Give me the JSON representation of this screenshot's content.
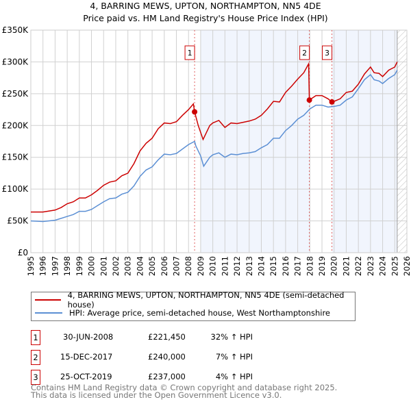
{
  "title": "4, BARRING MEWS, UPTON, NORTHAMPTON, NN5 4DE",
  "subtitle": "Price paid vs. HM Land Registry's House Price Index (HPI)",
  "chart_data": {
    "type": "line",
    "title": "4, BARRING MEWS, UPTON, NORTHAMPTON, NN5 4DE",
    "subtitle": "Price paid vs. HM Land Registry's House Price Index (HPI)",
    "xlim": [
      1995,
      2026
    ],
    "ylim": [
      0,
      350000
    ],
    "x_ticks": [
      "1995",
      "1996",
      "1997",
      "1998",
      "1999",
      "2000",
      "2001",
      "2002",
      "2003",
      "2004",
      "2005",
      "2006",
      "2007",
      "2008",
      "2009",
      "2010",
      "2011",
      "2012",
      "2013",
      "2014",
      "2015",
      "2016",
      "2017",
      "2018",
      "2019",
      "2020",
      "2021",
      "2022",
      "2023",
      "2024",
      "2025",
      "2026"
    ],
    "y_ticks": [
      {
        "v": 0,
        "label": "£0"
      },
      {
        "v": 50000,
        "label": "£50K"
      },
      {
        "v": 100000,
        "label": "£100K"
      },
      {
        "v": 150000,
        "label": "£150K"
      },
      {
        "v": 200000,
        "label": "£200K"
      },
      {
        "v": 250000,
        "label": "£250K"
      },
      {
        "v": 300000,
        "label": "£300K"
      },
      {
        "v": 350000,
        "label": "£350K"
      }
    ],
    "grid": true,
    "shaded_ranges": [
      [
        2009,
        2017.96
      ],
      [
        2019.82,
        2025.2
      ]
    ],
    "hatched_from": 2025.2,
    "series": [
      {
        "name": "4, BARRING MEWS, UPTON, NORTHAMPTON, NN5 4DE (semi-detached house)",
        "color": "#cc0000",
        "x": [
          1995,
          1996,
          1997,
          1997.5,
          1998,
          1998.5,
          1999,
          1999.5,
          2000,
          2000.5,
          2001,
          2001.5,
          2002,
          2002.5,
          2003,
          2003.5,
          2004,
          2004.5,
          2005,
          2005.5,
          2006,
          2006.5,
          2007,
          2007.5,
          2008,
          2008.4,
          2008.5,
          2008.8,
          2009.2,
          2009.75,
          2010,
          2010.5,
          2011,
          2011.5,
          2012,
          2012.5,
          2013,
          2013.5,
          2014,
          2014.5,
          2015,
          2015.5,
          2016,
          2016.5,
          2017,
          2017.5,
          2017.9,
          2017.96,
          2018.5,
          2019,
          2019.5,
          2019.82,
          2020,
          2020.5,
          2021,
          2021.5,
          2022,
          2022.5,
          2023,
          2023.3,
          2023.7,
          2024,
          2024.5,
          2025,
          2025.2
        ],
        "y": [
          64000,
          64000,
          67000,
          71000,
          77000,
          80000,
          86000,
          86000,
          91000,
          98000,
          106000,
          111000,
          113000,
          121000,
          125000,
          140000,
          160000,
          172000,
          180000,
          195000,
          204000,
          203000,
          206000,
          216000,
          225000,
          234000,
          221450,
          200000,
          178000,
          200000,
          204000,
          208000,
          197000,
          204000,
          203000,
          205000,
          207000,
          210000,
          216000,
          226000,
          238000,
          237000,
          252000,
          262000,
          273000,
          283000,
          297000,
          240000,
          247000,
          247000,
          242000,
          237000,
          238000,
          242000,
          252000,
          254000,
          265000,
          281000,
          292000,
          283000,
          282000,
          277000,
          287000,
          292000,
          300000
        ]
      },
      {
        "name": "HPI: Average price, semi-detached house, West Northamptonshire",
        "color": "#5b8fd4",
        "x": [
          1995,
          1996,
          1997,
          1997.5,
          1998,
          1998.5,
          1999,
          1999.5,
          2000,
          2000.5,
          2001,
          2001.5,
          2002,
          2002.5,
          2003,
          2003.5,
          2004,
          2004.5,
          2005,
          2005.5,
          2006,
          2006.5,
          2007,
          2007.5,
          2008,
          2008.5,
          2008.6,
          2009,
          2009.25,
          2009.75,
          2010,
          2010.5,
          2011,
          2011.5,
          2012,
          2012.5,
          2013,
          2013.5,
          2014,
          2014.5,
          2015,
          2015.5,
          2016,
          2016.5,
          2017,
          2017.5,
          2018,
          2018.5,
          2019,
          2019.5,
          2020,
          2020.5,
          2021,
          2021.5,
          2022,
          2022.5,
          2023,
          2023.3,
          2023.7,
          2024,
          2024.5,
          2025,
          2025.2
        ],
        "y": [
          50000,
          49000,
          51000,
          54000,
          57000,
          60000,
          65000,
          65000,
          68000,
          74000,
          80000,
          85000,
          86000,
          92000,
          95000,
          105000,
          120000,
          130000,
          135000,
          146000,
          155000,
          154000,
          156000,
          163000,
          170000,
          175000,
          168000,
          152000,
          136000,
          150000,
          154000,
          157000,
          150000,
          155000,
          154000,
          156000,
          157000,
          159000,
          165000,
          170000,
          180000,
          180000,
          192000,
          200000,
          210000,
          216000,
          226000,
          232000,
          232000,
          229000,
          230000,
          232000,
          240000,
          245000,
          258000,
          272000,
          280000,
          272000,
          270000,
          266000,
          274000,
          280000,
          287000
        ]
      }
    ],
    "sales": [
      {
        "label": "1",
        "x": 2008.5,
        "y": 221450,
        "date": "30-JUN-2008",
        "price": "£221,450",
        "hpi": "32% ↑ HPI"
      },
      {
        "label": "2",
        "x": 2017.96,
        "y": 240000,
        "date": "15-DEC-2017",
        "price": "£240,000",
        "hpi": "7% ↑ HPI"
      },
      {
        "label": "3",
        "x": 2019.82,
        "y": 237000,
        "date": "25-OCT-2019",
        "price": "£237,000",
        "hpi": "4% ↑ HPI"
      }
    ]
  },
  "footer": [
    "Contains HM Land Registry data © Crown copyright and database right 2025.",
    "This data is licensed under the Open Government Licence v3.0."
  ]
}
